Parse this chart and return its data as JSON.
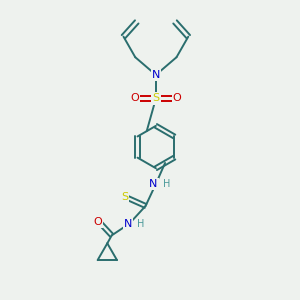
{
  "bg_color": "#eef2ee",
  "atom_colors": {
    "C": "#2a6e6e",
    "N": "#0000cc",
    "O": "#cc0000",
    "S_sulfo": "#cccc00",
    "S_thio": "#cccc00",
    "H": "#4a9a9a"
  },
  "bond_color": "#2a6e6e",
  "figsize": [
    3.0,
    3.0
  ],
  "dpi": 100
}
